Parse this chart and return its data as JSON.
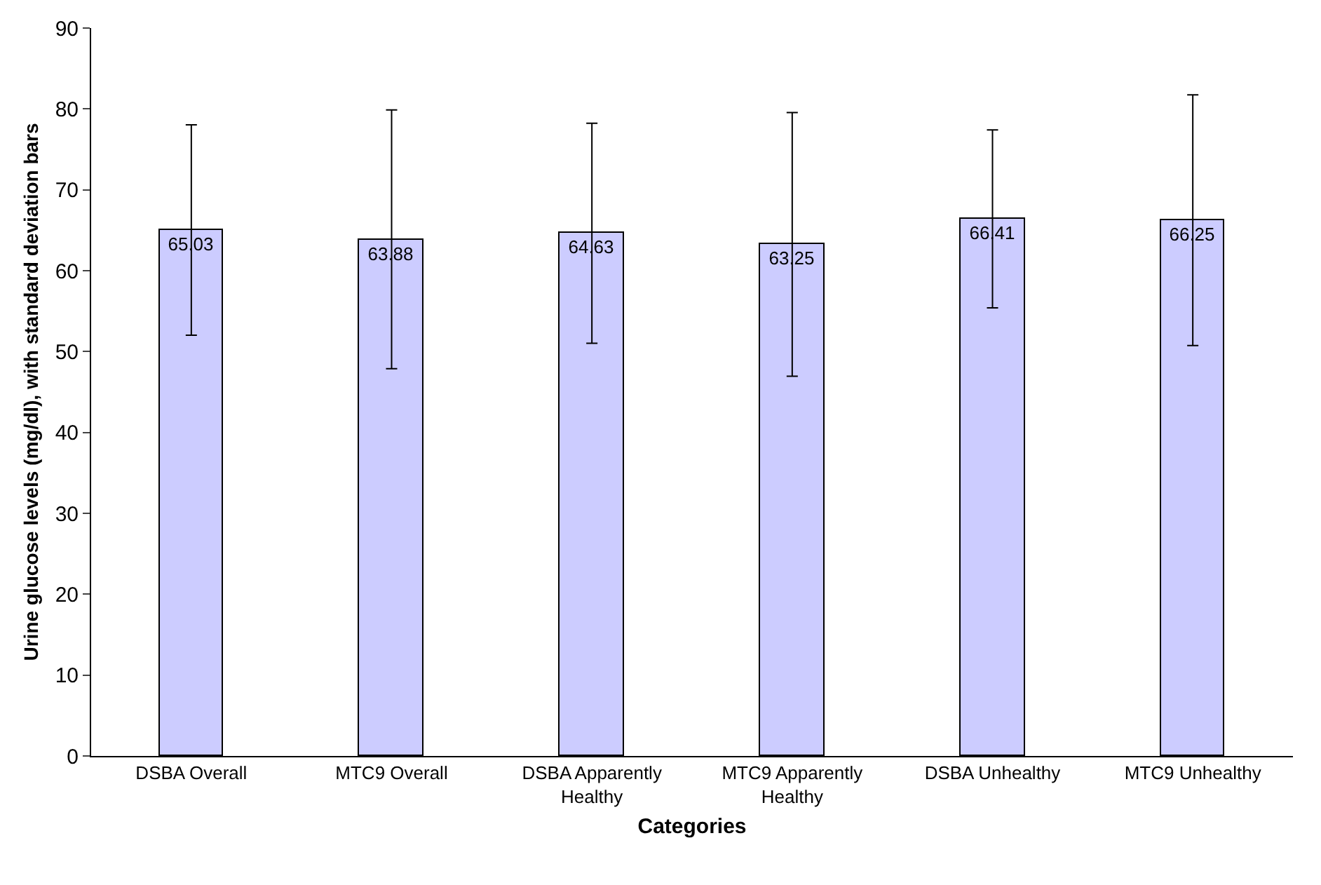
{
  "chart_data": {
    "type": "bar",
    "xlabel": "Categories",
    "ylabel": "Urine glucose levels (mg/dl), with standard deviation bars",
    "categories": [
      "DSBA Overall",
      "MTC9 Overall",
      "DSBA Apparently Healthy",
      "MTC9 Apparently Healthy",
      "DSBA Unhealthy",
      "MTC9 Unhealthy"
    ],
    "values": [
      65.03,
      63.88,
      64.63,
      63.25,
      66.41,
      66.25
    ],
    "errors": [
      13,
      16,
      13.6,
      16.3,
      11,
      15.5
    ],
    "color": "#ccccff",
    "ylim": [
      0,
      90
    ],
    "yticks": [
      0,
      10,
      20,
      30,
      40,
      50,
      60,
      70,
      80,
      90
    ],
    "data_labels": true,
    "grid": false,
    "legend": false
  }
}
